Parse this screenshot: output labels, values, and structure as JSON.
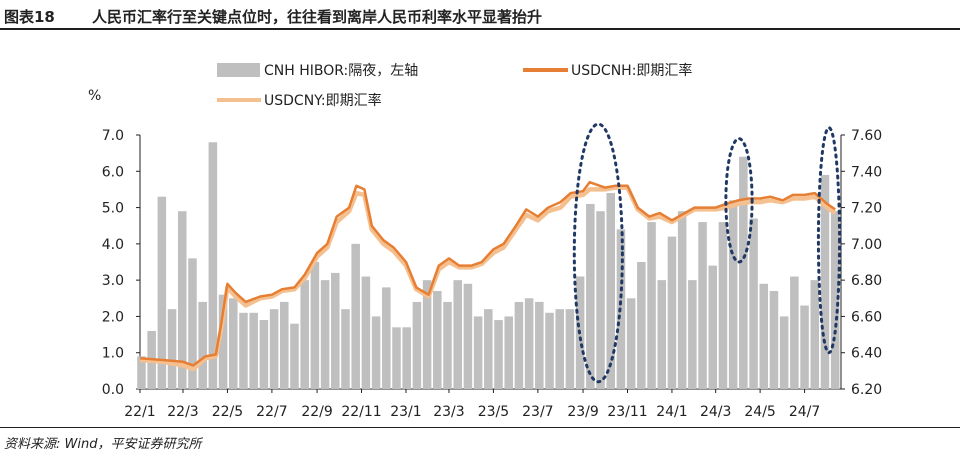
{
  "figure": {
    "number": "图表18",
    "title": "人民币汇率行至关键点位时，往往看到离岸人民币利率水平显著抬升",
    "source": "资料来源: Wind，平安证券研究所"
  },
  "chart_data": {
    "type": "line",
    "left_axis": {
      "unit": "%",
      "min": 0,
      "max": 7,
      "ticks": [
        "0.0",
        "1.0",
        "2.0",
        "3.0",
        "4.0",
        "5.0",
        "6.0",
        "7.0"
      ]
    },
    "right_axis": {
      "min": 6.2,
      "max": 7.6,
      "ticks": [
        "6.20",
        "6.40",
        "6.60",
        "6.80",
        "7.00",
        "7.20",
        "7.40",
        "7.60"
      ]
    },
    "x_ticks": [
      "22/1",
      "22/3",
      "22/5",
      "22/7",
      "22/9",
      "22/11",
      "23/1",
      "23/3",
      "23/5",
      "23/7",
      "23/9",
      "23/11",
      "24/1",
      "24/3",
      "24/5",
      "24/7"
    ],
    "legend": {
      "hibor": "CNH HIBOR:隔夜，左轴",
      "cnh": "USDCNH:即期汇率",
      "cny": "USDCNY:即期汇率"
    },
    "colors": {
      "hibor": "#bfbfbf",
      "cnh": "#e67e33",
      "cny": "#f5c08f",
      "circle": "#1f3864"
    },
    "series": [
      {
        "name": "CNH HIBOR:隔夜，左轴",
        "axis": "left",
        "kind": "area",
        "x": [
          "2022-01-03",
          "2022-01-17",
          "2022-01-31",
          "2022-02-14",
          "2022-02-28",
          "2022-03-14",
          "2022-03-28",
          "2022-04-11",
          "2022-04-25",
          "2022-05-09",
          "2022-05-23",
          "2022-06-06",
          "2022-06-20",
          "2022-07-04",
          "2022-07-18",
          "2022-08-01",
          "2022-08-15",
          "2022-08-29",
          "2022-09-12",
          "2022-09-26",
          "2022-10-10",
          "2022-10-24",
          "2022-11-07",
          "2022-11-21",
          "2022-12-05",
          "2022-12-19",
          "2023-01-02",
          "2023-01-16",
          "2023-01-30",
          "2023-02-13",
          "2023-02-27",
          "2023-03-13",
          "2023-03-27",
          "2023-04-10",
          "2023-04-24",
          "2023-05-08",
          "2023-05-22",
          "2023-06-05",
          "2023-06-19",
          "2023-07-03",
          "2023-07-17",
          "2023-07-31",
          "2023-08-14",
          "2023-08-28",
          "2023-09-11",
          "2023-09-25",
          "2023-10-09",
          "2023-10-23",
          "2023-11-06",
          "2023-11-20",
          "2023-12-04",
          "2023-12-18",
          "2024-01-01",
          "2024-01-15",
          "2024-01-29",
          "2024-02-12",
          "2024-02-26",
          "2024-03-11",
          "2024-03-25",
          "2024-04-08",
          "2024-04-22",
          "2024-05-06",
          "2024-05-20",
          "2024-06-03",
          "2024-06-17",
          "2024-07-01",
          "2024-07-15",
          "2024-07-29",
          "2024-08-12"
        ],
        "values": [
          0.9,
          1.6,
          5.3,
          2.2,
          4.9,
          3.6,
          2.4,
          6.8,
          2.6,
          2.5,
          2.1,
          2.1,
          1.9,
          2.2,
          2.4,
          1.8,
          3.0,
          3.5,
          3.0,
          3.2,
          2.2,
          4.0,
          3.1,
          2.0,
          2.8,
          1.7,
          1.7,
          2.4,
          3.0,
          2.7,
          2.4,
          3.0,
          2.9,
          2.0,
          2.2,
          1.9,
          2.0,
          2.4,
          2.5,
          2.4,
          2.1,
          2.2,
          2.2,
          3.1,
          5.1,
          4.9,
          5.4,
          4.4,
          2.5,
          3.5,
          4.6,
          3.0,
          4.2,
          4.9,
          3.0,
          4.6,
          3.4,
          4.6,
          5.2,
          6.4,
          4.7,
          2.9,
          2.7,
          2.0,
          3.1,
          2.3,
          3.0,
          5.9,
          4.9
        ]
      },
      {
        "name": "USDCNH:即期汇率",
        "axis": "right",
        "x": [
          "2022-01-01",
          "2022-02-01",
          "2022-03-01",
          "2022-03-15",
          "2022-04-01",
          "2022-04-15",
          "2022-04-22",
          "2022-05-01",
          "2022-05-12",
          "2022-05-26",
          "2022-06-15",
          "2022-07-01",
          "2022-07-15",
          "2022-08-01",
          "2022-08-15",
          "2022-09-01",
          "2022-09-15",
          "2022-09-28",
          "2022-10-15",
          "2022-10-25",
          "2022-11-05",
          "2022-11-15",
          "2022-12-01",
          "2022-12-15",
          "2023-01-01",
          "2023-01-15",
          "2023-02-01",
          "2023-02-15",
          "2023-03-01",
          "2023-03-15",
          "2023-04-01",
          "2023-04-15",
          "2023-05-01",
          "2023-05-15",
          "2023-06-01",
          "2023-06-15",
          "2023-07-01",
          "2023-07-15",
          "2023-08-01",
          "2023-08-15",
          "2023-09-01",
          "2023-09-10",
          "2023-10-01",
          "2023-10-15",
          "2023-11-01",
          "2023-11-15",
          "2023-12-01",
          "2023-12-15",
          "2024-01-01",
          "2024-02-01",
          "2024-03-01",
          "2024-03-15",
          "2024-04-01",
          "2024-04-15",
          "2024-05-01",
          "2024-05-15",
          "2024-06-01",
          "2024-06-15",
          "2024-07-01",
          "2024-07-15",
          "2024-08-01",
          "2024-08-12"
        ],
        "values": [
          6.37,
          6.36,
          6.35,
          6.33,
          6.38,
          6.39,
          6.55,
          6.78,
          6.73,
          6.68,
          6.71,
          6.72,
          6.75,
          6.76,
          6.83,
          6.95,
          7.0,
          7.15,
          7.2,
          7.32,
          7.3,
          7.1,
          7.02,
          6.98,
          6.9,
          6.76,
          6.72,
          6.88,
          6.92,
          6.88,
          6.88,
          6.9,
          6.97,
          7.0,
          7.1,
          7.19,
          7.15,
          7.2,
          7.23,
          7.28,
          7.29,
          7.34,
          7.31,
          7.32,
          7.32,
          7.2,
          7.15,
          7.17,
          7.13,
          7.2,
          7.2,
          7.22,
          7.24,
          7.25,
          7.25,
          7.26,
          7.24,
          7.27,
          7.27,
          7.28,
          7.22,
          7.19
        ]
      },
      {
        "name": "USDCNY:即期汇率",
        "axis": "right",
        "x": [
          "2022-01-01",
          "2022-02-01",
          "2022-03-01",
          "2022-03-15",
          "2022-04-01",
          "2022-04-15",
          "2022-04-22",
          "2022-05-01",
          "2022-05-12",
          "2022-05-26",
          "2022-06-15",
          "2022-07-01",
          "2022-07-15",
          "2022-08-01",
          "2022-08-15",
          "2022-09-01",
          "2022-09-15",
          "2022-09-28",
          "2022-10-15",
          "2022-10-25",
          "2022-11-05",
          "2022-11-15",
          "2022-12-01",
          "2022-12-15",
          "2023-01-01",
          "2023-01-15",
          "2023-02-01",
          "2023-02-15",
          "2023-03-01",
          "2023-03-15",
          "2023-04-01",
          "2023-04-15",
          "2023-05-01",
          "2023-05-15",
          "2023-06-01",
          "2023-06-15",
          "2023-07-01",
          "2023-07-15",
          "2023-08-01",
          "2023-08-15",
          "2023-09-01",
          "2023-09-10",
          "2023-10-01",
          "2023-10-15",
          "2023-11-01",
          "2023-11-15",
          "2023-12-01",
          "2023-12-15",
          "2024-01-01",
          "2024-02-01",
          "2024-03-01",
          "2024-03-15",
          "2024-04-01",
          "2024-04-15",
          "2024-05-01",
          "2024-05-15",
          "2024-06-01",
          "2024-06-15",
          "2024-07-01",
          "2024-07-15",
          "2024-08-01",
          "2024-08-12"
        ],
        "values": [
          6.36,
          6.35,
          6.33,
          6.31,
          6.37,
          6.38,
          6.52,
          6.76,
          6.71,
          6.66,
          6.7,
          6.71,
          6.74,
          6.75,
          6.81,
          6.93,
          6.98,
          7.12,
          7.18,
          7.28,
          7.27,
          7.08,
          7.0,
          6.96,
          6.88,
          6.75,
          6.71,
          6.86,
          6.9,
          6.87,
          6.87,
          6.89,
          6.95,
          6.98,
          7.08,
          7.16,
          7.13,
          7.18,
          7.2,
          7.26,
          7.27,
          7.3,
          7.3,
          7.31,
          7.31,
          7.19,
          7.14,
          7.15,
          7.12,
          7.19,
          7.19,
          7.2,
          7.22,
          7.23,
          7.23,
          7.24,
          7.23,
          7.25,
          7.25,
          7.26,
          7.2,
          7.17
        ]
      }
    ],
    "annotations": [
      {
        "shape": "dashed-ellipse",
        "from": "2023-08-20",
        "to": "2023-10-25",
        "y_from": 0.2,
        "y_to": 7.3
      },
      {
        "shape": "dashed-ellipse",
        "from": "2024-03-15",
        "to": "2024-04-20",
        "y_from": 3.5,
        "y_to": 6.9
      },
      {
        "shape": "dashed-ellipse",
        "from": "2024-07-20",
        "to": "2024-08-18",
        "y_from": 1.0,
        "y_to": 7.2
      }
    ]
  }
}
